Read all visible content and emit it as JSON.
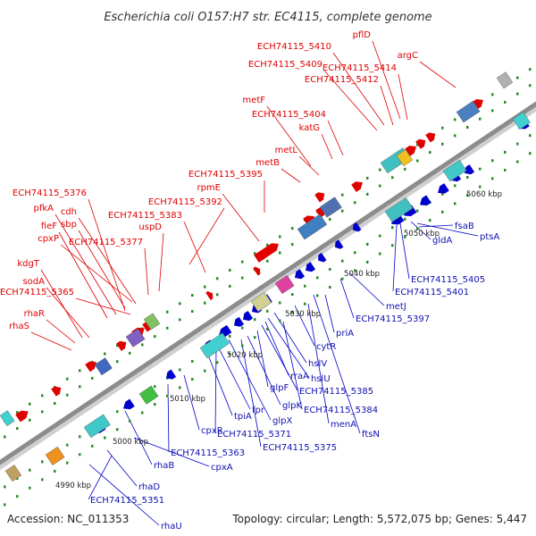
{
  "title": "Escherichia coli O157:H7 str. EC4115, complete genome",
  "footer": {
    "accession": "Accession: NC_011353",
    "summary": "Topology: circular; Length: 5,572,075 bp; Genes: 5,447"
  },
  "colors": {
    "forward": "#e00000",
    "reverse": "#0000cc",
    "backbone": "#909090",
    "tick_dots": "#2a8a2a"
  },
  "scale_labels": [
    "4990 kbp",
    "5000 kbp",
    "5010 kbp",
    "5020 kbp",
    "5030 kbp",
    "5040 kbp",
    "5050 kbp",
    "5060 kbp"
  ],
  "forward_genes": [
    "pflD",
    "ECH74115_5410",
    "ECH74115_5409",
    "ECH74115_5414",
    "argC",
    "ECH74115_5412",
    "metF",
    "ECH74115_5404",
    "katG",
    "metL",
    "metB",
    "ECH74115_5395",
    "rpmE",
    "ECH74115_5392",
    "uspD",
    "ECH74115_5376",
    "pfkA",
    "cdh",
    "ECH74115_5383",
    "sbp",
    "fieF",
    "cpxP",
    "ECH74115_5377",
    "kdgT",
    "sodA",
    "ECH74115_5365",
    "rhaR",
    "rhaS"
  ],
  "reverse_genes": [
    "ptsA",
    "fsaB",
    "gldA",
    "ECH74115_5405",
    "ECH74115_5401",
    "metJ",
    "ECH74115_5397",
    "priA",
    "cytR",
    "hslV",
    "hslU",
    "rraA",
    "ECH74115_5385",
    "glpF",
    "glpK",
    "ECH74115_5384",
    "menA",
    "ftsN",
    "tpiA",
    "fpr",
    "glpX",
    "ECH74115_5371",
    "ECH74115_5375",
    "cpxR",
    "ECH74115_5363",
    "cpxA",
    "rhaB",
    "rhaD",
    "ECH74115_5351",
    "rhaU"
  ]
}
